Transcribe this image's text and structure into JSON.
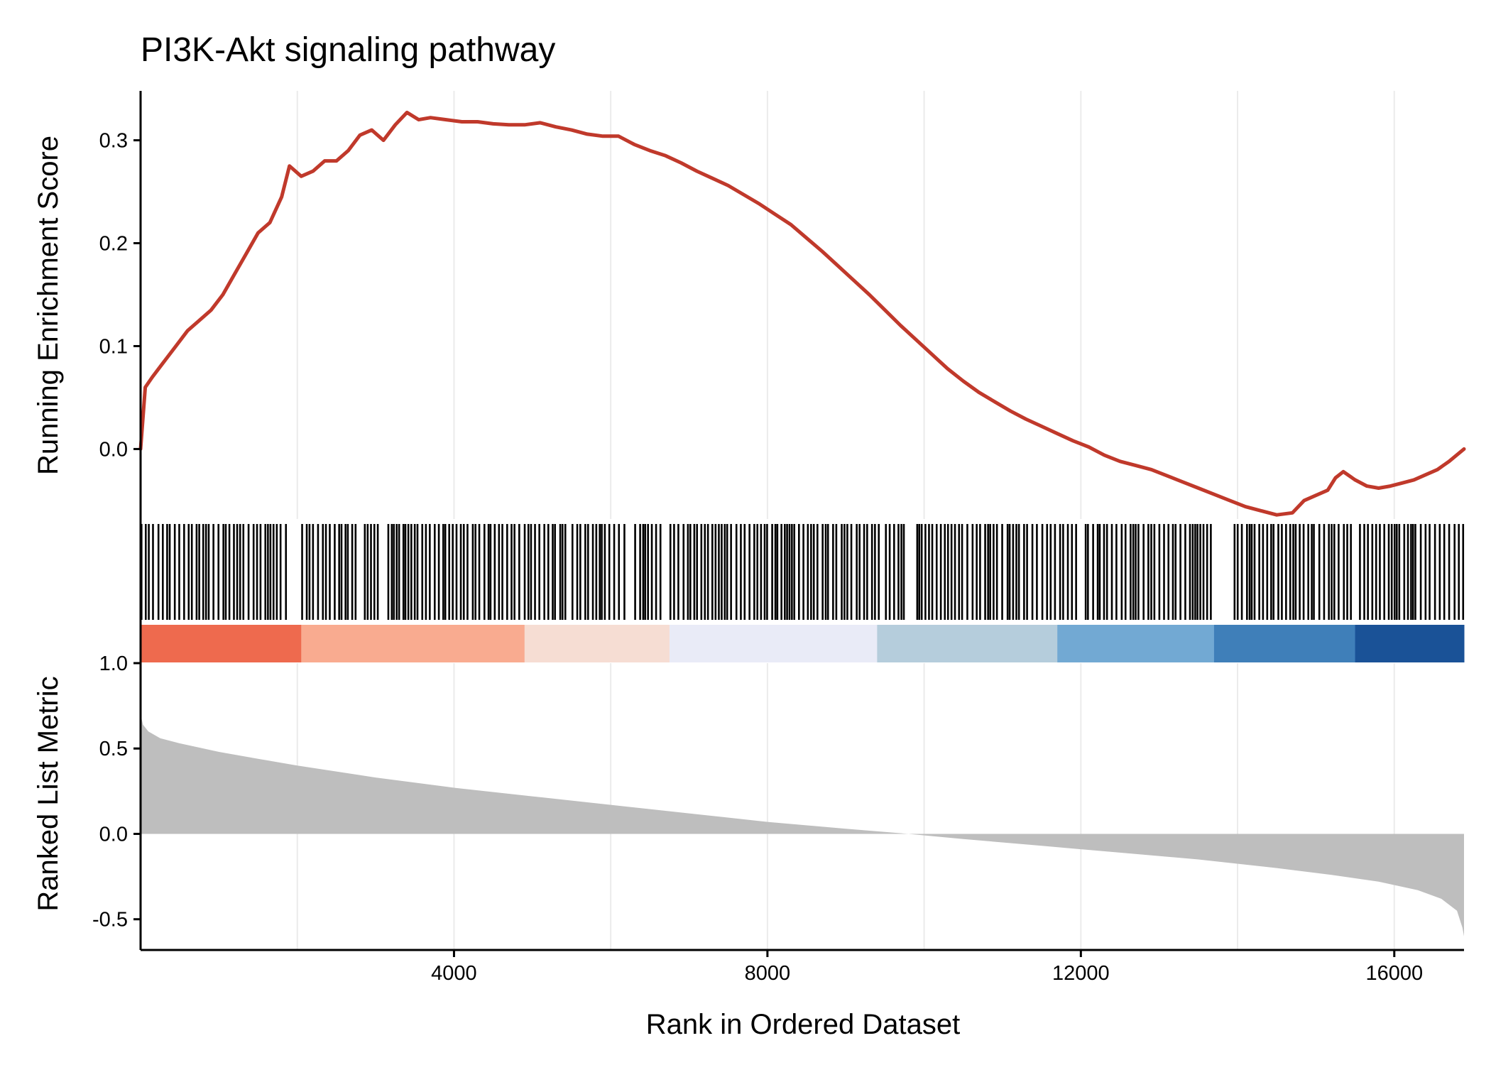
{
  "chart_data": {
    "type": "line",
    "title": "PI3K-Akt signaling pathway",
    "xlabel": "Rank in Ordered Dataset",
    "x_ticks": [
      4000,
      8000,
      12000,
      16000
    ],
    "x_tick_labels": [
      "4000",
      "8000",
      "12000",
      "16000"
    ],
    "xlim": [
      0,
      16890
    ],
    "grid": "vertical",
    "panels": {
      "enrichment": {
        "ylabel": "Running Enrichment Score",
        "ylim": [
          -0.068,
          0.348
        ],
        "y_ticks": [
          0.0,
          0.1,
          0.2,
          0.3
        ],
        "y_tick_labels": [
          "0.0",
          "0.1",
          "0.2",
          "0.3"
        ],
        "color": "#c0392b",
        "series": [
          {
            "x": [
              0,
              60,
              150,
              300,
              450,
              600,
              750,
              900,
              1050,
              1200,
              1350,
              1500,
              1650,
              1800,
              1900,
              2050,
              2200,
              2350,
              2500,
              2650,
              2800,
              2950,
              3100,
              3250,
              3400,
              3550,
              3700,
              3900,
              4100,
              4300,
              4500,
              4700,
              4900,
              5100,
              5300,
              5500,
              5700,
              5900,
              6100,
              6300,
              6500,
              6700,
              6900,
              7100,
              7300,
              7500,
              7700,
              7900,
              8100,
              8300,
              8500,
              8700,
              8900,
              9100,
              9300,
              9500,
              9700,
              9900,
              10100,
              10300,
              10500,
              10700,
              10900,
              11100,
              11300,
              11500,
              11700,
              11900,
              12100,
              12300,
              12500,
              12700,
              12900,
              13100,
              13300,
              13500,
              13700,
              13900,
              14100,
              14300,
              14500,
              14700,
              14850,
              15000,
              15150,
              15250,
              15350,
              15500,
              15650,
              15800,
              15950,
              16100,
              16250,
              16400,
              16550,
              16700,
              16890
            ],
            "values": [
              0.0,
              0.06,
              0.07,
              0.085,
              0.1,
              0.115,
              0.125,
              0.135,
              0.15,
              0.17,
              0.19,
              0.21,
              0.22,
              0.245,
              0.275,
              0.265,
              0.27,
              0.28,
              0.28,
              0.29,
              0.305,
              0.31,
              0.3,
              0.315,
              0.327,
              0.32,
              0.322,
              0.32,
              0.318,
              0.318,
              0.316,
              0.315,
              0.315,
              0.317,
              0.313,
              0.31,
              0.306,
              0.304,
              0.304,
              0.296,
              0.29,
              0.285,
              0.278,
              0.27,
              0.263,
              0.256,
              0.247,
              0.238,
              0.228,
              0.218,
              0.205,
              0.192,
              0.178,
              0.164,
              0.15,
              0.135,
              0.12,
              0.106,
              0.092,
              0.078,
              0.066,
              0.055,
              0.046,
              0.037,
              0.029,
              0.022,
              0.015,
              0.008,
              0.002,
              -0.006,
              -0.012,
              -0.016,
              -0.02,
              -0.026,
              -0.032,
              -0.038,
              -0.044,
              -0.05,
              -0.056,
              -0.06,
              -0.064,
              -0.062,
              -0.05,
              -0.045,
              -0.04,
              -0.028,
              -0.022,
              -0.03,
              -0.036,
              -0.038,
              -0.036,
              -0.033,
              -0.03,
              -0.025,
              -0.02,
              -0.012,
              0.0
            ]
          }
        ]
      },
      "hits": {
        "bands": [
          [
            0,
            1850
          ],
          [
            2050,
            2750
          ],
          [
            2850,
            3050
          ],
          [
            3150,
            5450
          ],
          [
            5500,
            6200
          ],
          [
            6300,
            6650
          ],
          [
            6750,
            9450
          ],
          [
            9500,
            9750
          ],
          [
            9900,
            11950
          ],
          [
            12050,
            13650
          ],
          [
            13950,
            15500
          ],
          [
            15550,
            16890
          ]
        ]
      },
      "color_bar": {
        "segments": [
          {
            "x": [
              0,
              2050
            ],
            "color": "#ee6a4e"
          },
          {
            "x": [
              2050,
              4900
            ],
            "color": "#f9ab90"
          },
          {
            "x": [
              4900,
              6750
            ],
            "color": "#f6ddd3"
          },
          {
            "x": [
              6750,
              9400
            ],
            "color": "#e9ebf7"
          },
          {
            "x": [
              9400,
              11700
            ],
            "color": "#b5cddc"
          },
          {
            "x": [
              11700,
              13700
            ],
            "color": "#72a9d3"
          },
          {
            "x": [
              13700,
              15500
            ],
            "color": "#3f7fb9"
          },
          {
            "x": [
              15500,
              16890
            ],
            "color": "#1a5297"
          }
        ]
      },
      "ranked_metric": {
        "ylabel": "Ranked List Metric",
        "ylim": [
          -0.68,
          1.0
        ],
        "y_ticks": [
          -0.5,
          0.0,
          0.5,
          1.0
        ],
        "y_tick_labels": [
          "-0.5",
          "0.0",
          "0.5",
          "1.0"
        ],
        "fill_color": "#bebebe",
        "series": [
          {
            "x": [
              0,
              30,
              100,
              250,
              500,
              1000,
              1500,
              2000,
              3000,
              4000,
              5000,
              6000,
              7000,
              8000,
              9000,
              9800,
              10500,
              11500,
              12500,
              13500,
              14500,
              15200,
              15800,
              16300,
              16600,
              16800,
              16870,
              16890
            ],
            "values": [
              0.7,
              0.64,
              0.6,
              0.56,
              0.53,
              0.48,
              0.44,
              0.4,
              0.33,
              0.27,
              0.22,
              0.17,
              0.12,
              0.07,
              0.03,
              0.0,
              -0.03,
              -0.07,
              -0.11,
              -0.15,
              -0.2,
              -0.24,
              -0.28,
              -0.33,
              -0.38,
              -0.45,
              -0.55,
              -0.6
            ]
          }
        ]
      }
    }
  }
}
